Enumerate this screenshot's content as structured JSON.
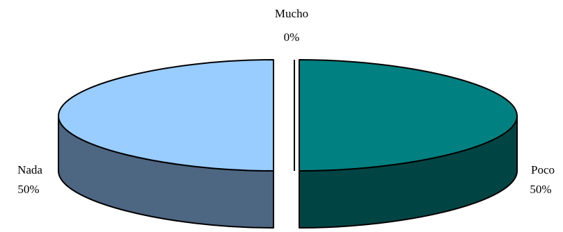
{
  "chart_data": {
    "type": "pie",
    "style": "3d-exploded",
    "slices": [
      {
        "label": "Poco",
        "value": 50,
        "percent_label": "50%",
        "top_color": "#008080",
        "side_color": "#004444"
      },
      {
        "label": "Nada",
        "value": 50,
        "percent_label": "50%",
        "top_color": "#99ccff",
        "side_color": "#4d6682"
      },
      {
        "label": "Mucho",
        "value": 0,
        "percent_label": "0%",
        "top_color": "#ffffff",
        "side_color": "#ffffff"
      }
    ],
    "legend": "none",
    "data_labels": "category-and-percent"
  }
}
